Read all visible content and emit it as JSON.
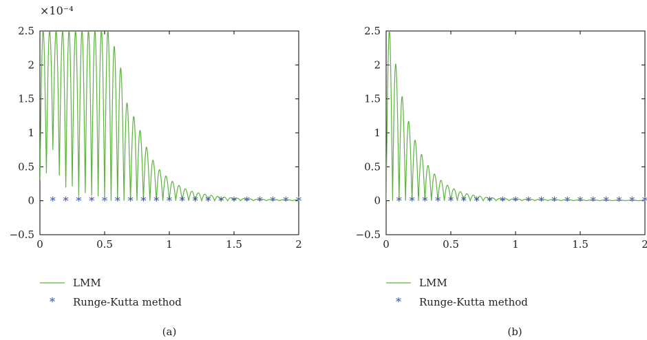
{
  "chart_data": [
    {
      "type": "line",
      "panel_label": "(a)",
      "scale_label": "×10⁻⁴",
      "xlim": [
        0,
        2
      ],
      "ylim": [
        -0.5,
        2.5
      ],
      "x_ticks": [
        "0",
        "0.5",
        "1",
        "1.5",
        "2"
      ],
      "y_ticks": [
        "2.5",
        "2",
        "1.5",
        "1",
        "0.5",
        "0",
        "−0.5"
      ],
      "grid": false,
      "legend": {
        "position": "bottom-left",
        "entries": [
          "LMM",
          "Runge-Kutta method"
        ]
      },
      "series": [
        {
          "name": "LMM",
          "style": "line",
          "color": "#5cb13f",
          "description": "rectified oscillation |sin|, decaying envelope; saturated at top of axis until ~x=0.54",
          "envelope_peaks": [
            [
              0.02,
              2.5
            ],
            [
              0.54,
              2.5
            ],
            [
              0.59,
              2.17
            ],
            [
              0.64,
              1.86
            ],
            [
              0.69,
              1.24
            ],
            [
              0.74,
              1.24
            ],
            [
              0.79,
              0.94
            ],
            [
              0.84,
              0.72
            ],
            [
              0.89,
              0.54
            ],
            [
              0.94,
              0.42
            ],
            [
              0.99,
              0.34
            ],
            [
              1.04,
              0.26
            ],
            [
              1.09,
              0.21
            ],
            [
              1.14,
              0.16
            ],
            [
              1.19,
              0.13
            ],
            [
              1.29,
              0.09
            ],
            [
              1.39,
              0.06
            ],
            [
              1.49,
              0.04
            ],
            [
              1.7,
              0.02
            ],
            [
              2.0,
              0.01
            ]
          ],
          "partial_minima": [
            [
              0.04,
              0.3
            ],
            [
              0.09,
              0.83
            ],
            [
              0.14,
              0.42
            ],
            [
              0.19,
              0.18
            ],
            [
              0.24,
              0.25
            ],
            [
              0.29,
              0.06
            ],
            [
              0.34,
              0.12
            ],
            [
              0.39,
              0.08
            ],
            [
              0.44,
              0.07
            ],
            [
              0.49,
              0.05
            ]
          ],
          "oscillation_period": 0.05
        },
        {
          "name": "Runge-Kutta method",
          "style": "marker",
          "marker": "*",
          "color": "#3c4f9c",
          "x": [
            0.1,
            0.2,
            0.3,
            0.4,
            0.5,
            0.6,
            0.7,
            0.8,
            0.9,
            1.0,
            1.1,
            1.2,
            1.3,
            1.4,
            1.5,
            1.6,
            1.7,
            1.8,
            1.9,
            2.0
          ],
          "y": [
            0,
            0,
            0,
            0,
            0,
            0,
            0,
            0,
            0,
            0,
            0,
            0,
            0,
            0,
            0,
            0,
            0,
            0,
            0,
            0
          ]
        }
      ]
    },
    {
      "type": "line",
      "panel_label": "(b)",
      "scale_label": "",
      "xlim": [
        0,
        2
      ],
      "ylim": [
        -0.5,
        2.5
      ],
      "x_ticks": [
        "0",
        "0.5",
        "1",
        "1.5",
        "2"
      ],
      "y_ticks": [
        "2.5",
        "2",
        "1.5",
        "1",
        "0.5",
        "0",
        "−0.5"
      ],
      "grid": false,
      "legend": {
        "position": "bottom-left",
        "entries": [
          "LMM",
          "Runge-Kutta method"
        ]
      },
      "series": [
        {
          "name": "LMM",
          "style": "line",
          "color": "#5cb13f",
          "description": "rectified oscillation |sin|, decaying envelope",
          "envelope_peaks": [
            [
              0.03,
              2.5
            ],
            [
              0.08,
              1.95
            ],
            [
              0.13,
              1.48
            ],
            [
              0.18,
              1.13
            ],
            [
              0.23,
              0.86
            ],
            [
              0.28,
              0.66
            ],
            [
              0.33,
              0.5
            ],
            [
              0.38,
              0.38
            ],
            [
              0.43,
              0.29
            ],
            [
              0.48,
              0.22
            ],
            [
              0.53,
              0.17
            ],
            [
              0.58,
              0.13
            ],
            [
              0.63,
              0.1
            ],
            [
              0.68,
              0.08
            ],
            [
              0.78,
              0.05
            ],
            [
              0.88,
              0.03
            ],
            [
              1.1,
              0.02
            ],
            [
              1.5,
              0.01
            ],
            [
              2.0,
              0.005
            ]
          ],
          "oscillation_period": 0.05
        },
        {
          "name": "Runge-Kutta method",
          "style": "marker",
          "marker": "*",
          "color": "#3c4f9c",
          "x": [
            0.1,
            0.2,
            0.3,
            0.4,
            0.5,
            0.6,
            0.7,
            0.8,
            0.9,
            1.0,
            1.1,
            1.2,
            1.3,
            1.4,
            1.5,
            1.6,
            1.7,
            1.8,
            1.9,
            2.0
          ],
          "y": [
            0,
            0,
            0,
            0,
            0,
            0,
            0,
            0,
            0,
            0,
            0,
            0,
            0,
            0,
            0,
            0,
            0,
            0,
            0,
            0
          ]
        }
      ]
    }
  ]
}
